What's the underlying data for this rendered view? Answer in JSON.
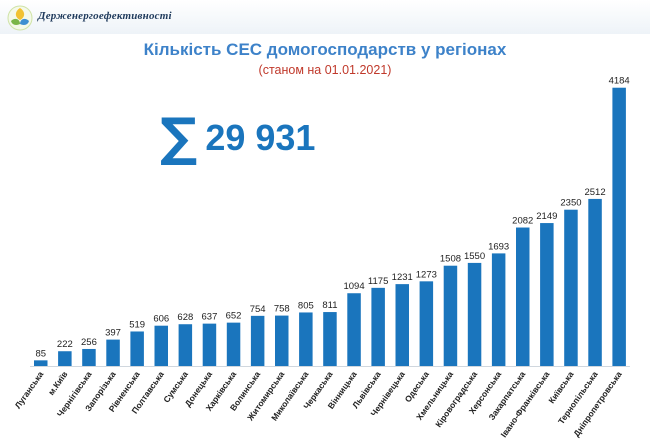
{
  "header": {
    "org_name": "Держенергоефективності",
    "logo_icon": "sun-leaf-logo-icon"
  },
  "title": "Кількість СЕС домогосподарств у регіонах",
  "subtitle": "(станом на 01.01.2021)",
  "summary": {
    "symbol": "∑",
    "total": "29 931"
  },
  "colors": {
    "bar": "#1a75bd",
    "title": "#3d82c9",
    "subtitle": "#c0392b"
  },
  "chart_data": {
    "type": "bar",
    "categories": [
      "Луганська",
      "м.Київ",
      "Чернігівська",
      "Запорізька",
      "Рівненська",
      "Полтавська",
      "Сумська",
      "Донецька",
      "Харківська",
      "Волинська",
      "Житомирська",
      "Миколаївська",
      "Черкаська",
      "Вінницька",
      "Львівська",
      "Чернівецька",
      "Одеська",
      "Хмельницька",
      "Кіровоградська",
      "Херсонська",
      "Закарпатська",
      "Івано-Франківська",
      "Київська",
      "Тернопільська",
      "Дніпропетровська"
    ],
    "values": [
      85,
      222,
      256,
      397,
      519,
      606,
      628,
      637,
      652,
      754,
      758,
      805,
      811,
      1094,
      1175,
      1231,
      1273,
      1508,
      1550,
      1693,
      2082,
      2149,
      2350,
      2512,
      4184
    ],
    "ylim": [
      0,
      4300
    ],
    "grid": false,
    "legend": "none"
  }
}
